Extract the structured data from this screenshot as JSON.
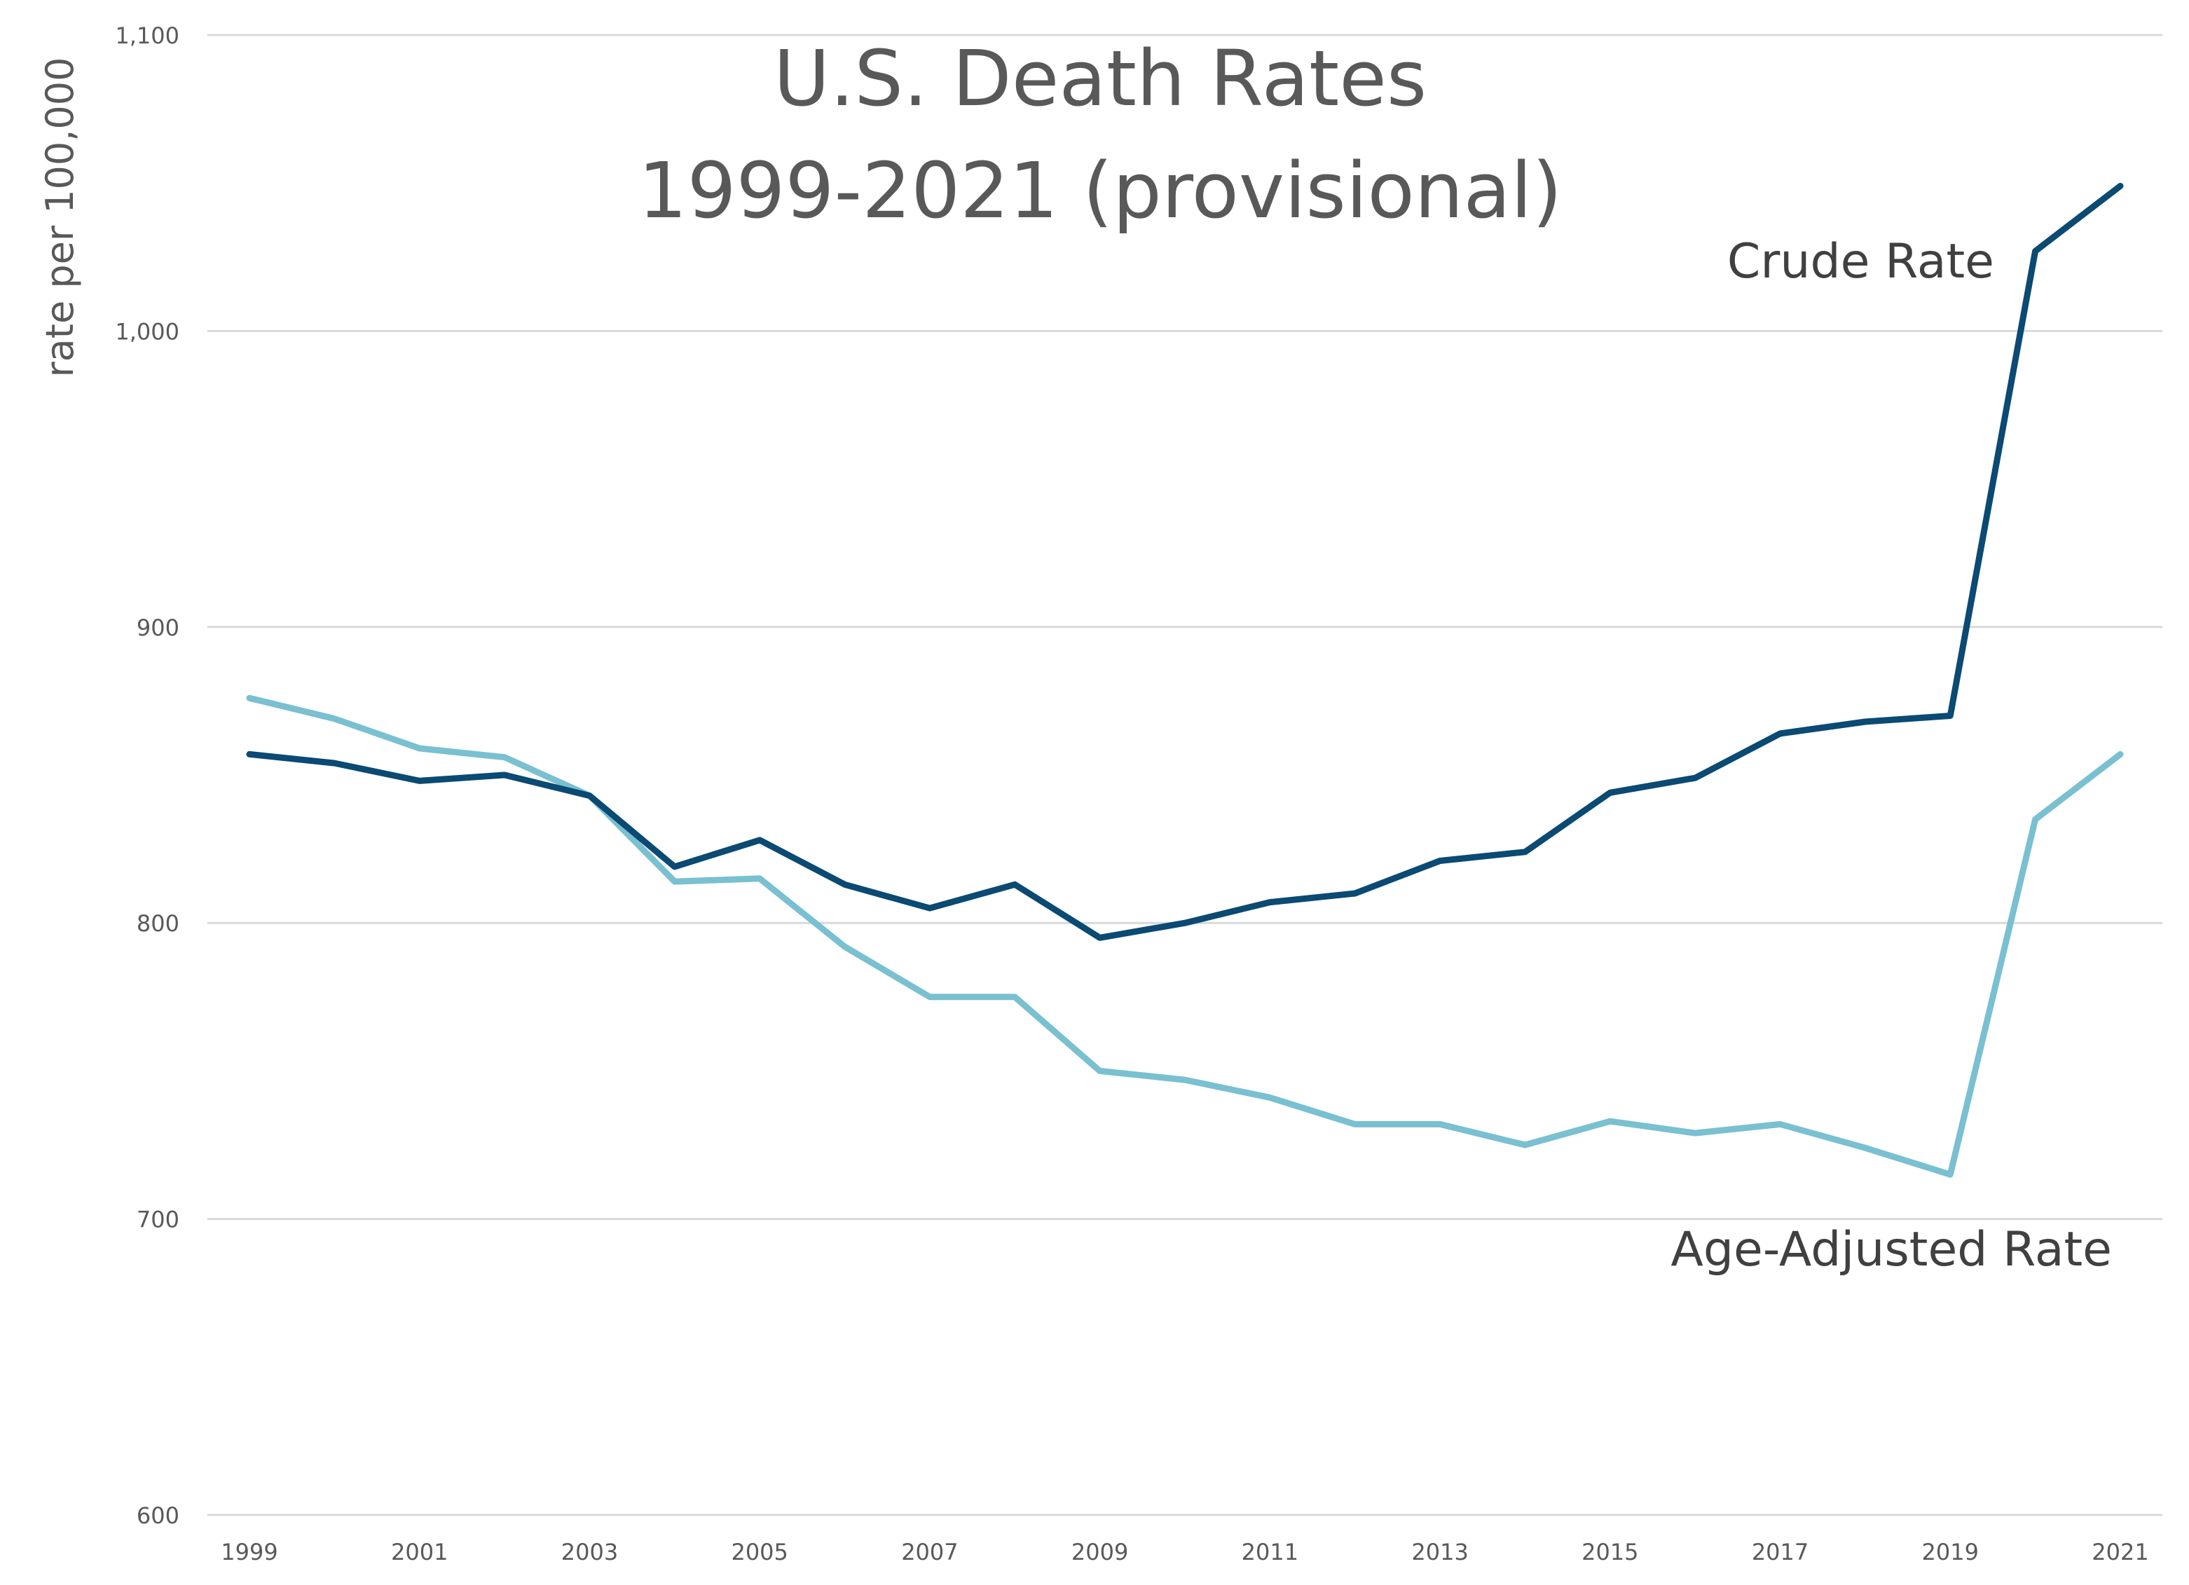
{
  "chart_data": {
    "type": "line",
    "title": [
      "U.S. Death Rates",
      "1999-2021 (provisional)"
    ],
    "xlabel": "",
    "ylabel": "rate per 100,000",
    "ylim": [
      600,
      1100
    ],
    "yticks": [
      600,
      700,
      800,
      900,
      1000,
      1100
    ],
    "ytick_labels": [
      "600",
      "700",
      "800",
      "900",
      "1,000",
      "1,100"
    ],
    "xlim": [
      1999,
      2021
    ],
    "xtick_labels": [
      "1999",
      "2001",
      "2003",
      "2005",
      "2007",
      "2009",
      "2011",
      "2013",
      "2015",
      "2017",
      "2019",
      "2021"
    ],
    "x": [
      1999,
      2000,
      2001,
      2002,
      2003,
      2004,
      2005,
      2006,
      2007,
      2008,
      2009,
      2010,
      2011,
      2012,
      2013,
      2014,
      2015,
      2016,
      2017,
      2018,
      2019,
      2020,
      2021
    ],
    "grid": true,
    "legend": "none (direct labels)",
    "series": [
      {
        "name": "Crude Rate",
        "color": "#0a4a73",
        "values": [
          857,
          854,
          848,
          850,
          843,
          819,
          828,
          813,
          805,
          813,
          795,
          800,
          807,
          810,
          821,
          824,
          844,
          849,
          864,
          868,
          870,
          1027,
          1049
        ]
      },
      {
        "name": "Age-Adjusted Rate",
        "color": "#79c0d1",
        "values": [
          876,
          869,
          859,
          856,
          843,
          814,
          815,
          792,
          775,
          775,
          750,
          747,
          741,
          732,
          732,
          725,
          733,
          729,
          732,
          724,
          715,
          835,
          857
        ]
      }
    ]
  }
}
